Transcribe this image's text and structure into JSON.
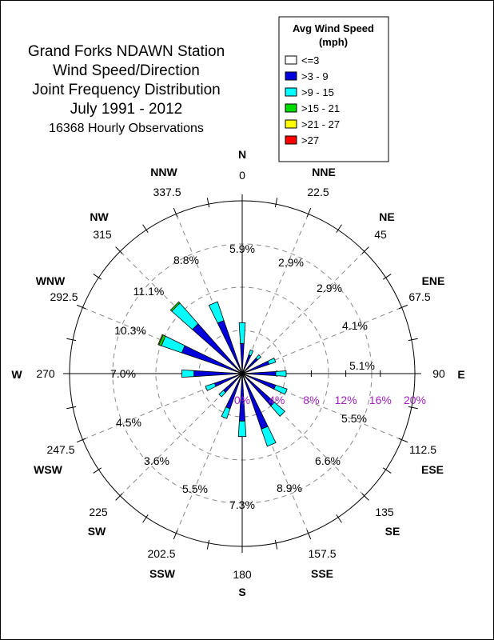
{
  "title_lines": [
    "Grand Forks NDAWN Station",
    "Wind Speed/Direction",
    "Joint Frequency Distribution",
    "July 1991 - 2012"
  ],
  "subtitle": "16368 Hourly Observations",
  "legend": {
    "title_line1": "Avg Wind Speed",
    "title_line2": "(mph)",
    "items": [
      {
        "label": "<=3",
        "color": "#ffffff"
      },
      {
        "label": ">3 - 9",
        "color": "#0000dd"
      },
      {
        "label": ">9 - 15",
        "color": "#00ffff"
      },
      {
        "label": ">15 - 21",
        "color": "#00dd00"
      },
      {
        "label": ">21 - 27",
        "color": "#ffff00"
      },
      {
        "label": ">27",
        "color": "#ff0000"
      }
    ]
  },
  "chart_data": {
    "type": "polar-bar",
    "radial_scale_labels": [
      "0%",
      "4%",
      "8%",
      "12%",
      "16%",
      "20%"
    ],
    "radial_max": 20,
    "bin_labels": [
      "<=3",
      ">3 - 9",
      ">9 - 15",
      ">15 - 21",
      ">21 - 27",
      ">27"
    ],
    "directions": [
      {
        "name": "N",
        "degrees": "0",
        "angle": 0,
        "frequency_label": "5.9%",
        "segments": [
          0.5,
          3.0,
          2.4,
          0,
          0,
          0
        ]
      },
      {
        "name": "NNE",
        "degrees": "22.5",
        "angle": 22.5,
        "frequency_label": "2.9%",
        "segments": [
          0.3,
          2.0,
          0.6,
          0,
          0,
          0
        ]
      },
      {
        "name": "NE",
        "degrees": "45",
        "angle": 45,
        "frequency_label": "2.9%",
        "segments": [
          0.3,
          2.1,
          0.5,
          0,
          0,
          0
        ]
      },
      {
        "name": "ENE",
        "degrees": "67.5",
        "angle": 67.5,
        "frequency_label": "4.1%",
        "segments": [
          0.3,
          3.0,
          0.8,
          0,
          0,
          0
        ]
      },
      {
        "name": "E",
        "degrees": "90",
        "angle": 90,
        "frequency_label": "5.1%",
        "segments": [
          0.3,
          3.6,
          1.2,
          0,
          0,
          0
        ]
      },
      {
        "name": "ESE",
        "degrees": "112.5",
        "angle": 112.5,
        "frequency_label": "5.5%",
        "segments": [
          0.3,
          3.8,
          1.4,
          0,
          0,
          0
        ]
      },
      {
        "name": "SE",
        "degrees": "135",
        "angle": 135,
        "frequency_label": "6.6%",
        "segments": [
          0.3,
          4.7,
          1.6,
          0,
          0,
          0
        ]
      },
      {
        "name": "SSE",
        "degrees": "157.5",
        "angle": 157.5,
        "frequency_label": "8.9%",
        "segments": [
          0.4,
          6.4,
          2.1,
          0,
          0,
          0
        ]
      },
      {
        "name": "S",
        "degrees": "180",
        "angle": 180,
        "frequency_label": "7.3%",
        "segments": [
          0.4,
          5.1,
          1.8,
          0,
          0,
          0
        ]
      },
      {
        "name": "SSW",
        "degrees": "202.5",
        "angle": 202.5,
        "frequency_label": "5.5%",
        "segments": [
          0.4,
          3.9,
          1.2,
          0,
          0,
          0
        ]
      },
      {
        "name": "SW",
        "degrees": "225",
        "angle": 225,
        "frequency_label": "3.6%",
        "segments": [
          0.3,
          2.6,
          0.7,
          0,
          0,
          0
        ]
      },
      {
        "name": "WSW",
        "degrees": "247.5",
        "angle": 247.5,
        "frequency_label": "4.5%",
        "segments": [
          0.3,
          3.1,
          1.1,
          0,
          0,
          0
        ]
      },
      {
        "name": "W",
        "degrees": "270",
        "angle": 270,
        "frequency_label": "7.0%",
        "segments": [
          0.4,
          5.2,
          1.4,
          0,
          0,
          0
        ]
      },
      {
        "name": "WNW",
        "degrees": "292.5",
        "angle": 292.5,
        "frequency_label": "10.3%",
        "segments": [
          0.5,
          6.9,
          2.5,
          0.3,
          0.1,
          0
        ]
      },
      {
        "name": "NW",
        "degrees": "315",
        "angle": 315,
        "frequency_label": "11.1%",
        "segments": [
          0.5,
          7.2,
          3.2,
          0.2,
          0,
          0
        ]
      },
      {
        "name": "NNW",
        "degrees": "337.5",
        "angle": 337.5,
        "frequency_label": "8.8%",
        "segments": [
          0.4,
          6.1,
          2.3,
          0,
          0,
          0
        ]
      }
    ]
  }
}
